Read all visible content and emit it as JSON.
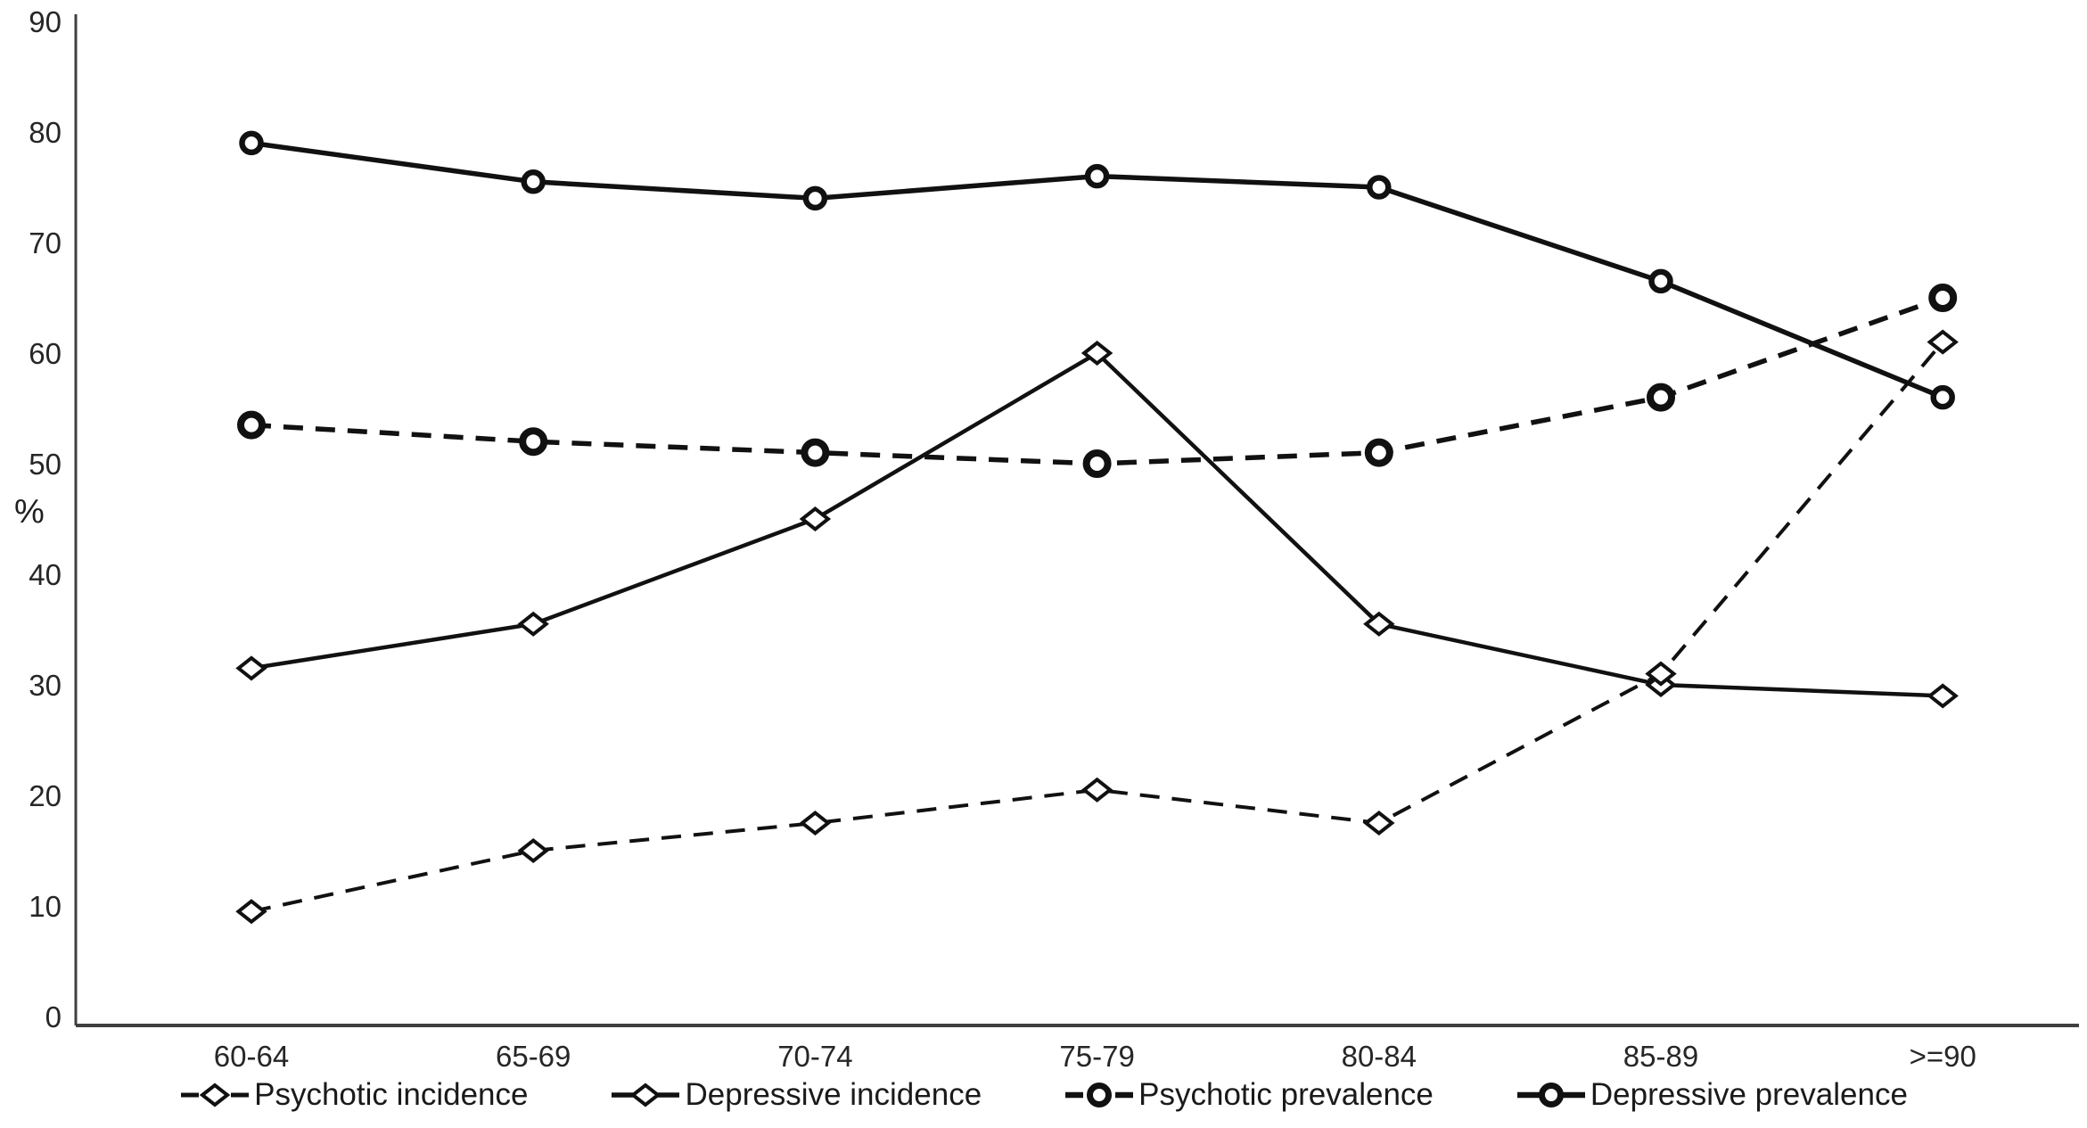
{
  "chart_data": {
    "type": "line",
    "title": "",
    "xlabel": "",
    "ylabel": "%",
    "ylim": [
      0,
      90
    ],
    "yticks": [
      0,
      10,
      20,
      30,
      40,
      50,
      60,
      70,
      80,
      90
    ],
    "categories": [
      "60-64",
      "65-69",
      "70-74",
      "75-79",
      "80-84",
      "85-89",
      ">=90"
    ],
    "grid": false,
    "legend_position": "bottom",
    "series": [
      {
        "name": "Psychotic incidence",
        "marker": "diamond",
        "line_style": "dashed",
        "line_width": 4,
        "values": [
          9.5,
          15,
          17.5,
          20.5,
          17.5,
          31,
          61
        ]
      },
      {
        "name": "Depressive incidence",
        "marker": "diamond",
        "line_style": "solid",
        "line_width": 4.5,
        "values": [
          31.5,
          35.5,
          45,
          60,
          35.5,
          30,
          29
        ]
      },
      {
        "name": "Psychotic prevalence",
        "marker": "circle",
        "line_style": "dashed",
        "line_width": 5.5,
        "values": [
          53.5,
          52,
          51,
          50,
          51,
          56,
          65
        ]
      },
      {
        "name": "Depressive prevalence",
        "marker": "circle",
        "line_style": "solid",
        "line_width": 5.5,
        "values": [
          79,
          75.5,
          74,
          76,
          75,
          66.5,
          56
        ]
      }
    ],
    "colors": {
      "line": "#111111",
      "axis": "#3f3f3f",
      "text": "#262626",
      "background": "#ffffff"
    }
  }
}
